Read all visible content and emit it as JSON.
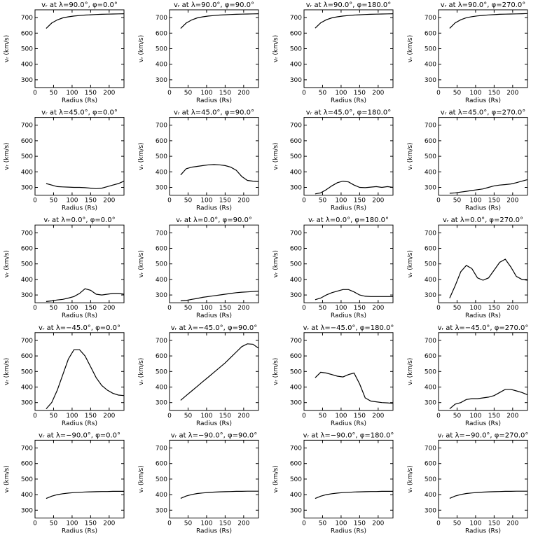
{
  "chart_data": [
    {
      "type": "line",
      "title": "vᵣ at λ=90.0°, φ=0.0°",
      "x_label": "Radius (Rs)",
      "y_label": "vᵣ (km/s)",
      "color": "#000000",
      "x": [
        30,
        45,
        60,
        75,
        90,
        105,
        120,
        135,
        150,
        165,
        180,
        195,
        210,
        225,
        240
      ],
      "values": [
        630,
        665,
        685,
        698,
        705,
        710,
        713,
        716,
        718,
        720,
        721,
        722,
        723,
        724,
        725
      ],
      "xlim": [
        0,
        240
      ],
      "ylim": [
        250,
        750
      ],
      "xticks": [
        0,
        50,
        100,
        150,
        200
      ],
      "yticks": [
        300,
        400,
        500,
        600,
        700
      ]
    },
    {
      "type": "line",
      "title": "vᵣ at λ=90.0°, φ=90.0°",
      "x_label": "Radius (Rs)",
      "y_label": "vᵣ (km/s)",
      "color": "#000000",
      "x": [
        30,
        45,
        60,
        75,
        90,
        105,
        120,
        135,
        150,
        165,
        180,
        195,
        210,
        225,
        240
      ],
      "values": [
        630,
        665,
        685,
        698,
        705,
        710,
        713,
        716,
        718,
        720,
        721,
        722,
        723,
        724,
        725
      ],
      "xlim": [
        0,
        240
      ],
      "ylim": [
        250,
        750
      ],
      "xticks": [
        0,
        50,
        100,
        150,
        200
      ],
      "yticks": [
        300,
        400,
        500,
        600,
        700
      ]
    },
    {
      "type": "line",
      "title": "vᵣ at λ=90.0°, φ=180.0°",
      "x_label": "Radius (Rs)",
      "y_label": "vᵣ (km/s)",
      "color": "#000000",
      "x": [
        30,
        45,
        60,
        75,
        90,
        105,
        120,
        135,
        150,
        165,
        180,
        195,
        210,
        225,
        240
      ],
      "values": [
        632,
        666,
        686,
        698,
        705,
        710,
        713,
        716,
        718,
        720,
        721,
        722,
        723,
        724,
        725
      ],
      "xlim": [
        0,
        240
      ],
      "ylim": [
        250,
        750
      ],
      "xticks": [
        0,
        50,
        100,
        150,
        200
      ],
      "yticks": [
        300,
        400,
        500,
        600,
        700
      ]
    },
    {
      "type": "line",
      "title": "vᵣ at λ=90.0°, φ=270.0°",
      "x_label": "Radius (Rs)",
      "y_label": "vᵣ (km/s)",
      "color": "#000000",
      "x": [
        30,
        45,
        60,
        75,
        90,
        105,
        120,
        135,
        150,
        165,
        180,
        195,
        210,
        225,
        240
      ],
      "values": [
        631,
        666,
        686,
        699,
        706,
        711,
        714,
        717,
        719,
        721,
        722,
        723,
        724,
        725,
        726
      ],
      "xlim": [
        0,
        240
      ],
      "ylim": [
        250,
        750
      ],
      "xticks": [
        0,
        50,
        100,
        150,
        200
      ],
      "yticks": [
        300,
        400,
        500,
        600,
        700
      ]
    },
    {
      "type": "line",
      "title": "vᵣ at λ=45.0°, φ=0.0°",
      "x_label": "Radius (Rs)",
      "y_label": "vᵣ (km/s)",
      "color": "#000000",
      "x": [
        30,
        45,
        60,
        75,
        90,
        105,
        120,
        135,
        150,
        165,
        180,
        195,
        210,
        225,
        240
      ],
      "values": [
        325,
        315,
        305,
        303,
        302,
        300,
        300,
        298,
        295,
        292,
        295,
        305,
        315,
        325,
        340
      ],
      "xlim": [
        0,
        240
      ],
      "ylim": [
        250,
        750
      ],
      "xticks": [
        0,
        50,
        100,
        150,
        200
      ],
      "yticks": [
        300,
        400,
        500,
        600,
        700
      ]
    },
    {
      "type": "line",
      "title": "vᵣ at λ=45.0°, φ=90.0°",
      "x_label": "Radius (Rs)",
      "y_label": "vᵣ (km/s)",
      "color": "#000000",
      "x": [
        30,
        45,
        60,
        75,
        90,
        105,
        120,
        135,
        150,
        165,
        180,
        195,
        210,
        225,
        240
      ],
      "values": [
        380,
        420,
        430,
        435,
        440,
        445,
        447,
        445,
        440,
        430,
        410,
        370,
        345,
        340,
        338
      ],
      "xlim": [
        0,
        240
      ],
      "ylim": [
        250,
        750
      ],
      "xticks": [
        0,
        50,
        100,
        150,
        200
      ],
      "yticks": [
        300,
        400,
        500,
        600,
        700
      ]
    },
    {
      "type": "line",
      "title": "vᵣ at λ=45.0°, φ=180.0°",
      "x_label": "Radius (Rs)",
      "y_label": "vᵣ (km/s)",
      "color": "#000000",
      "x": [
        30,
        45,
        60,
        75,
        90,
        105,
        120,
        135,
        150,
        165,
        180,
        195,
        210,
        225,
        240
      ],
      "values": [
        258,
        265,
        285,
        310,
        330,
        340,
        335,
        315,
        300,
        298,
        302,
        305,
        300,
        305,
        300
      ],
      "xlim": [
        0,
        240
      ],
      "ylim": [
        250,
        750
      ],
      "xticks": [
        0,
        50,
        100,
        150,
        200
      ],
      "yticks": [
        300,
        400,
        500,
        600,
        700
      ]
    },
    {
      "type": "line",
      "title": "vᵣ at λ=45.0°, φ=270.0°",
      "x_label": "Radius (Rs)",
      "y_label": "vᵣ (km/s)",
      "color": "#000000",
      "x": [
        30,
        45,
        60,
        75,
        90,
        105,
        120,
        135,
        150,
        165,
        180,
        195,
        210,
        225,
        240
      ],
      "values": [
        262,
        265,
        270,
        275,
        280,
        285,
        290,
        300,
        310,
        315,
        318,
        322,
        330,
        340,
        350
      ],
      "xlim": [
        0,
        240
      ],
      "ylim": [
        250,
        750
      ],
      "xticks": [
        0,
        50,
        100,
        150,
        200
      ],
      "yticks": [
        300,
        400,
        500,
        600,
        700
      ]
    },
    {
      "type": "line",
      "title": "vᵣ at λ=0.0°, φ=0.0°",
      "x_label": "Radius (Rs)",
      "y_label": "vᵣ (km/s)",
      "color": "#000000",
      "x": [
        30,
        45,
        60,
        75,
        90,
        105,
        120,
        135,
        150,
        165,
        180,
        195,
        210,
        225,
        240
      ],
      "values": [
        258,
        262,
        268,
        272,
        280,
        290,
        310,
        340,
        330,
        305,
        300,
        305,
        310,
        310,
        305
      ],
      "xlim": [
        0,
        240
      ],
      "ylim": [
        250,
        750
      ],
      "xticks": [
        0,
        50,
        100,
        150,
        200
      ],
      "yticks": [
        300,
        400,
        500,
        600,
        700
      ]
    },
    {
      "type": "line",
      "title": "vᵣ at λ=0.0°, φ=90.0°",
      "x_label": "Radius (Rs)",
      "y_label": "vᵣ (km/s)",
      "color": "#000000",
      "x": [
        30,
        45,
        60,
        75,
        90,
        105,
        120,
        135,
        150,
        165,
        180,
        195,
        210,
        225,
        240
      ],
      "values": [
        262,
        265,
        272,
        278,
        285,
        290,
        295,
        300,
        305,
        310,
        315,
        318,
        320,
        322,
        325
      ],
      "xlim": [
        0,
        240
      ],
      "ylim": [
        250,
        750
      ],
      "xticks": [
        0,
        50,
        100,
        150,
        200
      ],
      "yticks": [
        300,
        400,
        500,
        600,
        700
      ]
    },
    {
      "type": "line",
      "title": "vᵣ at λ=0.0°, φ=180.0°",
      "x_label": "Radius (Rs)",
      "y_label": "vᵣ (km/s)",
      "color": "#000000",
      "x": [
        30,
        45,
        60,
        75,
        90,
        105,
        120,
        135,
        150,
        165,
        180,
        195,
        210,
        225,
        240
      ],
      "values": [
        270,
        280,
        300,
        315,
        325,
        335,
        335,
        320,
        300,
        292,
        290,
        290,
        290,
        290,
        290
      ],
      "xlim": [
        0,
        240
      ],
      "ylim": [
        250,
        750
      ],
      "xticks": [
        0,
        50,
        100,
        150,
        200
      ],
      "yticks": [
        300,
        400,
        500,
        600,
        700
      ]
    },
    {
      "type": "line",
      "title": "vᵣ at λ=0.0°, φ=270.0°",
      "x_label": "Radius (Rs)",
      "y_label": "vᵣ (km/s)",
      "color": "#000000",
      "x": [
        30,
        45,
        60,
        75,
        90,
        105,
        120,
        135,
        150,
        165,
        180,
        195,
        210,
        225,
        240
      ],
      "values": [
        280,
        360,
        450,
        490,
        470,
        410,
        395,
        410,
        460,
        510,
        530,
        480,
        420,
        400,
        395
      ],
      "xlim": [
        0,
        240
      ],
      "ylim": [
        250,
        750
      ],
      "xticks": [
        0,
        50,
        100,
        150,
        200
      ],
      "yticks": [
        300,
        400,
        500,
        600,
        700
      ]
    },
    {
      "type": "line",
      "title": "vᵣ at λ=−45.0°, φ=0.0°",
      "x_label": "Radius (Rs)",
      "y_label": "vᵣ (km/s)",
      "color": "#000000",
      "x": [
        30,
        45,
        60,
        75,
        90,
        105,
        120,
        135,
        150,
        165,
        180,
        195,
        210,
        225,
        240
      ],
      "values": [
        260,
        300,
        380,
        480,
        580,
        640,
        640,
        600,
        530,
        460,
        410,
        380,
        360,
        348,
        345
      ],
      "xlim": [
        0,
        240
      ],
      "ylim": [
        250,
        750
      ],
      "xticks": [
        0,
        50,
        100,
        150,
        200
      ],
      "yticks": [
        300,
        400,
        500,
        600,
        700
      ]
    },
    {
      "type": "line",
      "title": "vᵣ at λ=−45.0°, φ=90.0°",
      "x_label": "Radius (Rs)",
      "y_label": "vᵣ (km/s)",
      "color": "#000000",
      "x": [
        30,
        45,
        60,
        75,
        90,
        105,
        120,
        135,
        150,
        165,
        180,
        195,
        210,
        225,
        240
      ],
      "values": [
        315,
        345,
        375,
        405,
        435,
        465,
        495,
        525,
        555,
        590,
        625,
        660,
        678,
        675,
        650
      ],
      "xlim": [
        0,
        240
      ],
      "ylim": [
        250,
        750
      ],
      "xticks": [
        0,
        50,
        100,
        150,
        200
      ],
      "yticks": [
        300,
        400,
        500,
        600,
        700
      ]
    },
    {
      "type": "line",
      "title": "vᵣ at λ=−45.0°, φ=180.0°",
      "x_label": "Radius (Rs)",
      "y_label": "vᵣ (km/s)",
      "color": "#000000",
      "x": [
        30,
        45,
        60,
        75,
        90,
        105,
        120,
        135,
        150,
        165,
        180,
        195,
        210,
        225,
        240
      ],
      "values": [
        460,
        495,
        490,
        480,
        470,
        465,
        480,
        490,
        420,
        330,
        310,
        305,
        300,
        298,
        295
      ],
      "xlim": [
        0,
        240
      ],
      "ylim": [
        250,
        750
      ],
      "xticks": [
        0,
        50,
        100,
        150,
        200
      ],
      "yticks": [
        300,
        400,
        500,
        600,
        700
      ]
    },
    {
      "type": "line",
      "title": "vᵣ at λ=−45.0°, φ=270.0°",
      "x_label": "Radius (Rs)",
      "y_label": "vᵣ (km/s)",
      "color": "#000000",
      "x": [
        30,
        45,
        60,
        75,
        90,
        105,
        120,
        135,
        150,
        165,
        180,
        195,
        210,
        225,
        240
      ],
      "values": [
        260,
        290,
        300,
        320,
        325,
        325,
        330,
        335,
        345,
        365,
        385,
        385,
        375,
        365,
        350
      ],
      "xlim": [
        0,
        240
      ],
      "ylim": [
        250,
        750
      ],
      "xticks": [
        0,
        50,
        100,
        150,
        200
      ],
      "yticks": [
        300,
        400,
        500,
        600,
        700
      ]
    },
    {
      "type": "line",
      "title": "vᵣ at λ=−90.0°, φ=0.0°",
      "x_label": "Radius (Rs)",
      "y_label": "vᵣ (km/s)",
      "color": "#000000",
      "x": [
        30,
        45,
        60,
        75,
        90,
        105,
        120,
        135,
        150,
        165,
        180,
        195,
        210,
        225,
        240
      ],
      "values": [
        375,
        390,
        400,
        406,
        410,
        413,
        415,
        417,
        418,
        419,
        420,
        420,
        421,
        421,
        421
      ],
      "xlim": [
        0,
        240
      ],
      "ylim": [
        250,
        750
      ],
      "xticks": [
        0,
        50,
        100,
        150,
        200
      ],
      "yticks": [
        300,
        400,
        500,
        600,
        700
      ]
    },
    {
      "type": "line",
      "title": "vᵣ at λ=−90.0°, φ=90.0°",
      "x_label": "Radius (Rs)",
      "y_label": "vᵣ (km/s)",
      "color": "#000000",
      "x": [
        30,
        45,
        60,
        75,
        90,
        105,
        120,
        135,
        150,
        165,
        180,
        195,
        210,
        225,
        240
      ],
      "values": [
        376,
        391,
        401,
        407,
        411,
        414,
        416,
        418,
        419,
        420,
        421,
        421,
        422,
        422,
        422
      ],
      "xlim": [
        0,
        240
      ],
      "ylim": [
        250,
        750
      ],
      "xticks": [
        0,
        50,
        100,
        150,
        200
      ],
      "yticks": [
        300,
        400,
        500,
        600,
        700
      ]
    },
    {
      "type": "line",
      "title": "vᵣ at λ=−90.0°, φ=180.0°",
      "x_label": "Radius (Rs)",
      "y_label": "vᵣ (km/s)",
      "color": "#000000",
      "x": [
        30,
        45,
        60,
        75,
        90,
        105,
        120,
        135,
        150,
        165,
        180,
        195,
        210,
        225,
        240
      ],
      "values": [
        375,
        390,
        400,
        406,
        410,
        413,
        415,
        417,
        418,
        419,
        420,
        420,
        421,
        421,
        421
      ],
      "xlim": [
        0,
        240
      ],
      "ylim": [
        250,
        750
      ],
      "xticks": [
        0,
        50,
        100,
        150,
        200
      ],
      "yticks": [
        300,
        400,
        500,
        600,
        700
      ]
    },
    {
      "type": "line",
      "title": "vᵣ at λ=−90.0°, φ=270.0°",
      "x_label": "Radius (Rs)",
      "y_label": "vᵣ (km/s)",
      "color": "#000000",
      "x": [
        30,
        45,
        60,
        75,
        90,
        105,
        120,
        135,
        150,
        165,
        180,
        195,
        210,
        225,
        240
      ],
      "values": [
        376,
        391,
        401,
        407,
        411,
        414,
        416,
        418,
        419,
        420,
        421,
        421,
        422,
        422,
        422
      ],
      "xlim": [
        0,
        240
      ],
      "ylim": [
        250,
        750
      ],
      "xticks": [
        0,
        50,
        100,
        150,
        200
      ],
      "yticks": [
        300,
        400,
        500,
        600,
        700
      ]
    }
  ]
}
